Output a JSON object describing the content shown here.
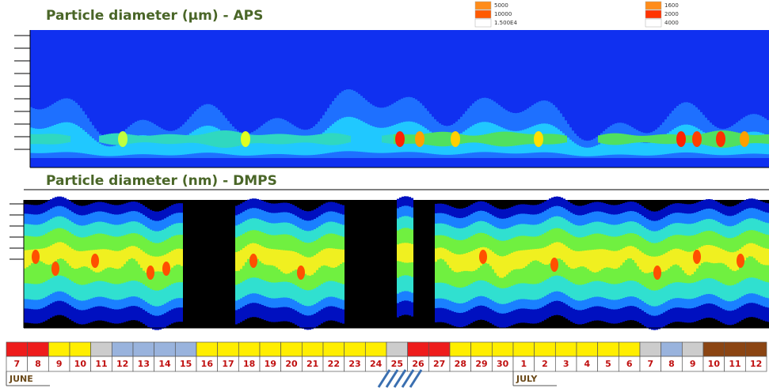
{
  "panels": [
    {
      "title": "Particle diameter (µm) - APS"
    },
    {
      "title": "Particle diameter (nm) - DMPS"
    }
  ],
  "legends": [
    {
      "entries": [
        {
          "label": "5000",
          "color": "#ff8c1a"
        },
        {
          "label": "10000",
          "color": "#ff5a00"
        },
        {
          "label": "1.500E4",
          "color": "#ffffff"
        }
      ]
    },
    {
      "entries": [
        {
          "label": "1600",
          "color": "#ff8c1a"
        },
        {
          "label": "2000",
          "color": "#ff3300"
        },
        {
          "label": "4000",
          "color": "#ffffff"
        }
      ]
    }
  ],
  "calendar": {
    "days": [
      {
        "label": "7",
        "color": "#ee1c1c"
      },
      {
        "label": "8",
        "color": "#ee1c1c"
      },
      {
        "label": "9",
        "color": "#ffee00"
      },
      {
        "label": "10",
        "color": "#ffee00"
      },
      {
        "label": "11",
        "color": "#cccccc"
      },
      {
        "label": "12",
        "color": "#99b3dd"
      },
      {
        "label": "13",
        "color": "#99b3dd"
      },
      {
        "label": "14",
        "color": "#99b3dd"
      },
      {
        "label": "15",
        "color": "#99b3dd"
      },
      {
        "label": "16",
        "color": "#ffee00"
      },
      {
        "label": "17",
        "color": "#ffee00"
      },
      {
        "label": "18",
        "color": "#ffee00"
      },
      {
        "label": "19",
        "color": "#ffee00"
      },
      {
        "label": "20",
        "color": "#ffee00"
      },
      {
        "label": "21",
        "color": "#ffee00"
      },
      {
        "label": "22",
        "color": "#ffee00"
      },
      {
        "label": "23",
        "color": "#ffee00"
      },
      {
        "label": "24",
        "color": "#ffee00"
      },
      {
        "label": "25",
        "color": "#cccccc"
      },
      {
        "label": "26",
        "color": "#ee1c1c"
      },
      {
        "label": "27",
        "color": "#ee1c1c"
      },
      {
        "label": "28",
        "color": "#ffee00"
      },
      {
        "label": "29",
        "color": "#ffee00"
      },
      {
        "label": "30",
        "color": "#ffee00"
      },
      {
        "label": "1",
        "color": "#ffee00"
      },
      {
        "label": "2",
        "color": "#ffee00"
      },
      {
        "label": "3",
        "color": "#ffee00"
      },
      {
        "label": "4",
        "color": "#ffee00"
      },
      {
        "label": "5",
        "color": "#ffee00"
      },
      {
        "label": "6",
        "color": "#ffee00"
      },
      {
        "label": "7",
        "color": "#cccccc"
      },
      {
        "label": "8",
        "color": "#99b3dd"
      },
      {
        "label": "9",
        "color": "#cccccc"
      },
      {
        "label": "10",
        "color": "#8b4513"
      },
      {
        "label": "11",
        "color": "#8b4513"
      },
      {
        "label": "12",
        "color": "#8b4513"
      }
    ],
    "months": [
      "JUNE",
      "JULY"
    ]
  }
}
